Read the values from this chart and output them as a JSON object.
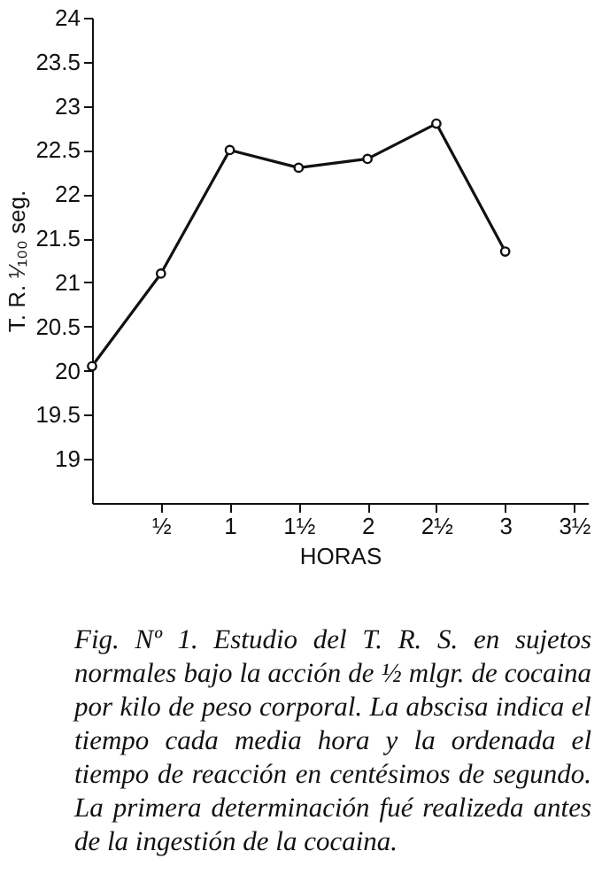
{
  "chart_data": {
    "type": "line",
    "xlabel": "HORAS",
    "ylabel": "T. R. ¹⁄₁₀₀ seg.",
    "x": [
      0,
      0.5,
      1,
      1.5,
      2,
      2.5,
      3
    ],
    "series": [
      {
        "color": "#111111",
        "values": [
          20.05,
          21.1,
          22.5,
          22.3,
          22.4,
          22.8,
          21.35
        ]
      }
    ],
    "xlim": [
      0,
      3.6
    ],
    "xticks": [
      {
        "value": 0.5,
        "label": "½"
      },
      1,
      {
        "value": 1.5,
        "label": "1½"
      },
      2,
      {
        "value": 2.5,
        "label": "2½"
      },
      3,
      {
        "value": 3.5,
        "label": "3½"
      }
    ],
    "ylim": [
      18.5,
      24
    ],
    "yticks": [
      19,
      19.5,
      20,
      20.5,
      21,
      21.5,
      22,
      22.5,
      23,
      23.5,
      24
    ],
    "grid": false,
    "marker": "circle",
    "line_style": "solid",
    "annotations": [
      "Fig. Nº 1.  Estudio del T. R. S. en sujetos normales bajo la acción de ½ mlgr. de cocaina por kilo de peso corporal.  La abscisa indica el tiempo cada media hora y la ordenada el tiempo de reacción en centésimos de segundo.  La primera determinación fué realizeda antes de la ingestión de la cocaina."
    ]
  }
}
